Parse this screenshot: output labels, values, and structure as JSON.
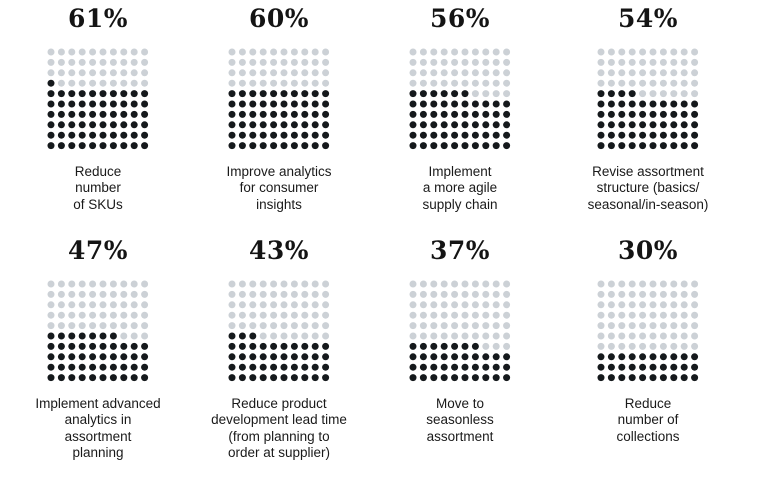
{
  "chart_data": {
    "type": "waffle",
    "grid": {
      "rows": 10,
      "cols": 10
    },
    "colors": {
      "filled": "#15191c",
      "empty": "#ccd1d6"
    },
    "items": [
      {
        "value": 61,
        "value_label": "61%",
        "label": "Reduce\nnumber\nof SKUs"
      },
      {
        "value": 60,
        "value_label": "60%",
        "label": "Improve analytics\nfor consumer\ninsights"
      },
      {
        "value": 56,
        "value_label": "56%",
        "label": "Implement\na more agile\nsupply chain"
      },
      {
        "value": 54,
        "value_label": "54%",
        "label": "Revise assortment\nstructure (basics/\nseasonal/in-season)"
      },
      {
        "value": 47,
        "value_label": "47%",
        "label": "Implement advanced\nanalytics in\nassortment\nplanning"
      },
      {
        "value": 43,
        "value_label": "43%",
        "label": "Reduce product\ndevelopment lead time\n(from planning to\norder at supplier)"
      },
      {
        "value": 37,
        "value_label": "37%",
        "label": "Move to\nseasonless\nassortment"
      },
      {
        "value": 30,
        "value_label": "30%",
        "label": "Reduce\nnumber of\ncollections"
      }
    ]
  }
}
